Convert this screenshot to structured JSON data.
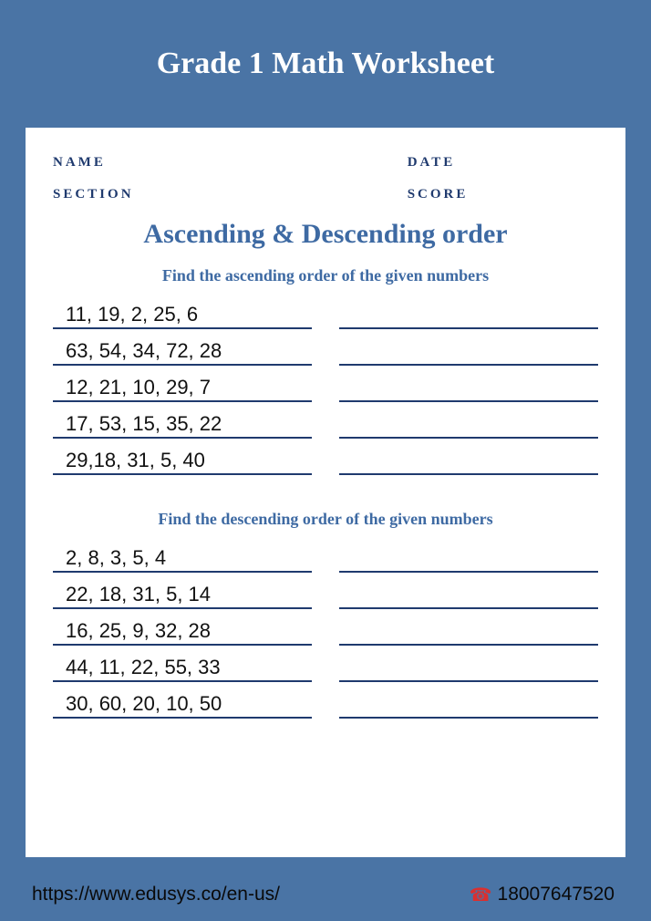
{
  "header": {
    "title": "Grade 1 Math Worksheet"
  },
  "meta": {
    "name_label": "NAME",
    "date_label": "DATE",
    "section_label": "SECTION",
    "score_label": "SCORE"
  },
  "topic": {
    "title": "Ascending & Descending order"
  },
  "sections": [
    {
      "instruction": "Find the ascending order of the given numbers",
      "problems": [
        "11, 19, 2, 25, 6",
        "63, 54, 34, 72, 28",
        "12, 21, 10, 29, 7",
        "17, 53, 15, 35, 22",
        "29,18, 31, 5, 40"
      ]
    },
    {
      "instruction": "Find the descending order of the given numbers",
      "problems": [
        "2, 8, 3, 5, 4",
        "22, 18, 31, 5, 14",
        "16, 25, 9, 32, 28",
        "44, 11, 22, 55, 33",
        "30, 60, 20, 10, 50"
      ]
    }
  ],
  "footer": {
    "url": "https://www.edusys.co/en-us/",
    "phone": "18007647520"
  },
  "colors": {
    "band": "#4a74a5",
    "page_bg": "#ffffff",
    "meta_text": "#1f3a6e",
    "topic_text": "#3e6aa3",
    "underline": "#1f3a6e",
    "problem_text": "#111111",
    "footer_text": "#0a0a0a",
    "phone_icon": "#d93030"
  },
  "typography": {
    "header_title_size": 34,
    "meta_label_size": 15,
    "topic_title_size": 30,
    "instruction_size": 18,
    "problem_size": 22,
    "footer_size": 21
  }
}
